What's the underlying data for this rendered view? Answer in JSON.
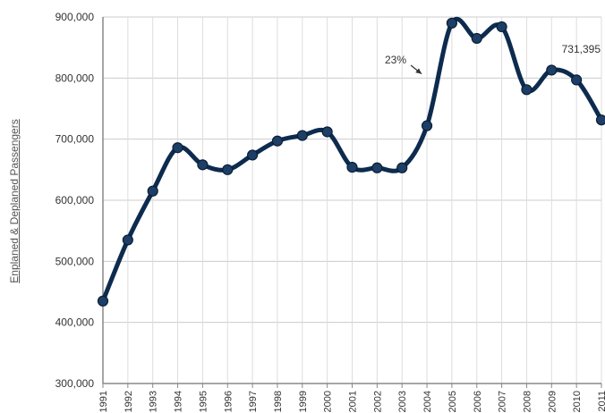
{
  "chart_data": {
    "type": "line",
    "title": "",
    "xlabel": "",
    "ylabel": "Enplaned & Deplaned Passengers",
    "x": [
      "1991",
      "1992",
      "1993",
      "1994",
      "1995",
      "1996",
      "1997",
      "1998",
      "1999",
      "2000",
      "2001",
      "2002",
      "2003",
      "2004",
      "2005",
      "2006",
      "2007",
      "2008",
      "2009",
      "2010",
      "2011"
    ],
    "series": [
      {
        "values": [
          435000,
          535000,
          615000,
          686000,
          658000,
          650000,
          674000,
          697000,
          706000,
          712000,
          654000,
          653000,
          653000,
          722000,
          890000,
          865000,
          884000,
          781000,
          813000,
          797000,
          731395
        ]
      }
    ],
    "ylim": [
      300000,
      900000
    ],
    "yticks": [
      "300,000",
      "400,000",
      "500,000",
      "600,000",
      "700,000",
      "800,000",
      "900,000"
    ],
    "grid": "on",
    "annotations": [
      {
        "text": "23%",
        "arrow": "pointing to 2004"
      },
      {
        "text": "731,395",
        "at": "2011"
      }
    ],
    "colors": {
      "line": "#0d2b4e",
      "grid": "#cccccc",
      "axis": "#888888",
      "text": "#333333"
    }
  }
}
